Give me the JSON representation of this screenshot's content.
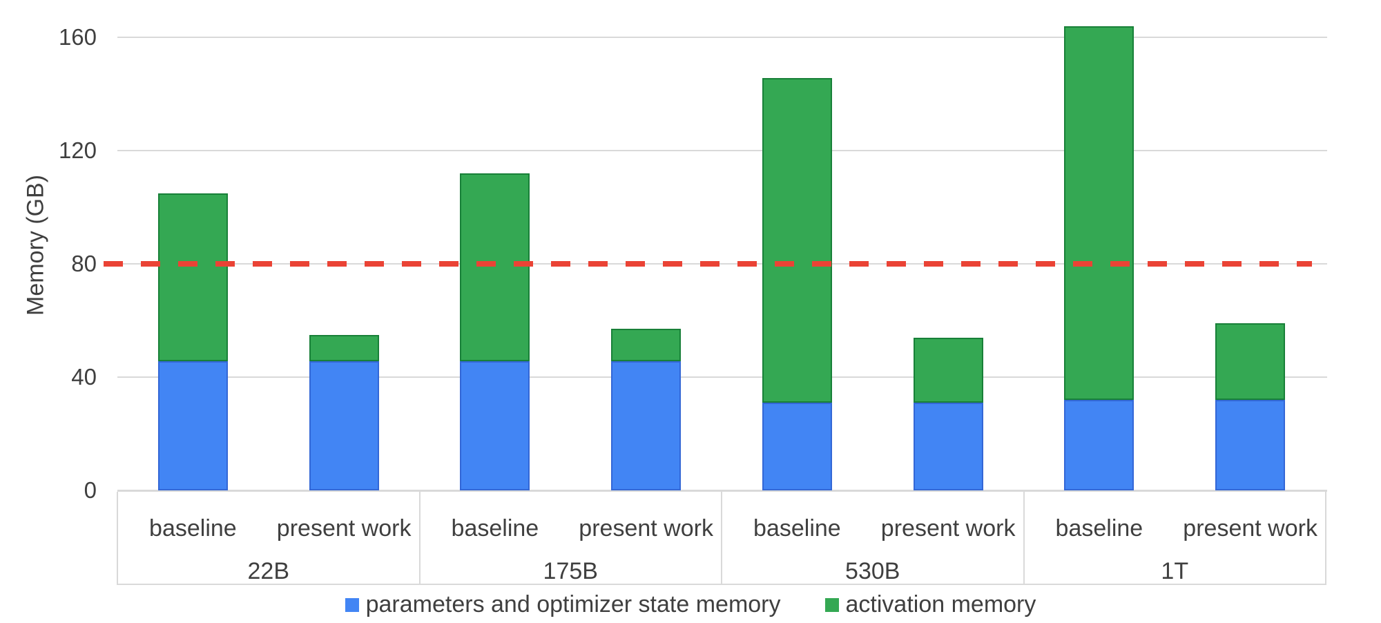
{
  "chart_data": {
    "type": "bar",
    "stacked": true,
    "title": "",
    "ylabel": "Memory (GB)",
    "xlabel": "",
    "ylim": [
      0,
      170
    ],
    "yticks": [
      0,
      40,
      80,
      120,
      160
    ],
    "grid": true,
    "legend_position": "bottom",
    "groups": [
      "22B",
      "175B",
      "530B",
      "1T"
    ],
    "bar_labels": [
      "baseline",
      "present work"
    ],
    "categories": [
      {
        "group": "22B",
        "variant": "baseline"
      },
      {
        "group": "22B",
        "variant": "present work"
      },
      {
        "group": "175B",
        "variant": "baseline"
      },
      {
        "group": "175B",
        "variant": "present work"
      },
      {
        "group": "530B",
        "variant": "baseline"
      },
      {
        "group": "530B",
        "variant": "present work"
      },
      {
        "group": "1T",
        "variant": "baseline"
      },
      {
        "group": "1T",
        "variant": "present work"
      }
    ],
    "series": [
      {
        "name": "parameters and optimizer state memory",
        "color": "#4285F4",
        "border_color": "#3367d6",
        "values": [
          45.5,
          45.5,
          45.5,
          45.5,
          31,
          31,
          32,
          32
        ]
      },
      {
        "name": "activation memory",
        "color": "#34A853",
        "border_color": "#188038",
        "values": [
          59.5,
          9.5,
          66.5,
          11.5,
          114.5,
          23,
          132,
          27
        ]
      }
    ],
    "bar_totals": [
      105,
      55,
      112,
      57,
      145.5,
      54,
      164,
      59
    ],
    "reference_line": {
      "value": 80,
      "color": "#EA4335",
      "style": "dashed"
    },
    "colors": {
      "gridline": "#d9d9d9",
      "axis_text": "#3f3f3f"
    }
  }
}
